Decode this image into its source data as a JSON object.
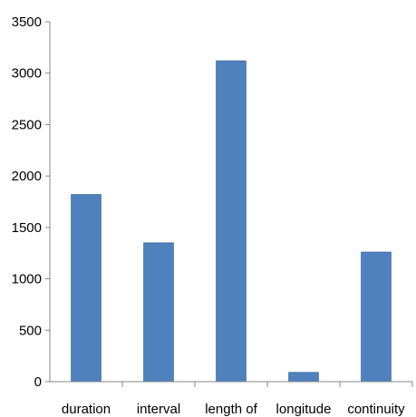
{
  "chart_data": {
    "type": "bar",
    "title": "",
    "xlabel": "",
    "ylabel": "",
    "categories": [
      "duration",
      "interval",
      "length of",
      "longitude",
      "continuity"
    ],
    "values": [
      1820,
      1350,
      3120,
      90,
      1260
    ],
    "ylim": [
      0,
      3500
    ],
    "yticks": [
      0,
      500,
      1000,
      1500,
      2000,
      2500,
      3000,
      3500
    ],
    "grid": false,
    "legend": "none",
    "bar_color": "#4f81bd",
    "axis_color": "#868686"
  }
}
